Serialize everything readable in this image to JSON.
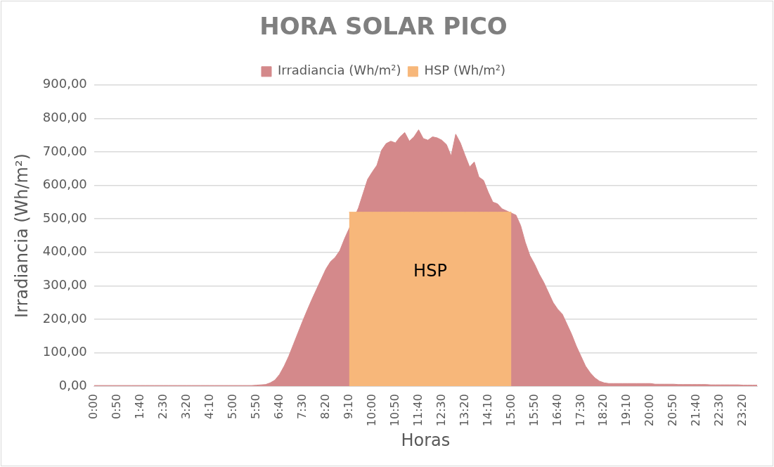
{
  "chart_data": {
    "type": "area",
    "title": "HORA SOLAR PICO",
    "xlabel": "Horas",
    "ylabel": "Irradiancia (Wh/m²)",
    "categories": [
      "0:00",
      null,
      null,
      null,
      null,
      "0:50",
      null,
      null,
      null,
      null,
      "1:40",
      null,
      null,
      null,
      null,
      "2:30",
      null,
      null,
      null,
      null,
      "3:20",
      null,
      null,
      null,
      null,
      "4:10",
      null,
      null,
      null,
      null,
      "5:00",
      null,
      null,
      null,
      null,
      "5:50",
      null,
      null,
      null,
      null,
      "6:40",
      null,
      null,
      null,
      null,
      "7:30",
      null,
      null,
      null,
      null,
      "8:20",
      null,
      null,
      null,
      null,
      "9:10",
      null,
      null,
      null,
      null,
      "10:00",
      null,
      null,
      null,
      null,
      "10:50",
      null,
      null,
      null,
      null,
      "11:40",
      null,
      null,
      null,
      null,
      "12:30",
      null,
      null,
      null,
      null,
      "13:20",
      null,
      null,
      null,
      null,
      "14:10",
      null,
      null,
      null,
      null,
      "15:00",
      null,
      null,
      null,
      null,
      "15:50",
      null,
      null,
      null,
      null,
      "16:40",
      null,
      null,
      null,
      null,
      "17:30",
      null,
      null,
      null,
      null,
      "18:20",
      null,
      null,
      null,
      null,
      "19:10",
      null,
      null,
      null,
      null,
      "20:00",
      null,
      null,
      null,
      null,
      "20:50",
      null,
      null,
      null,
      null,
      "21:40",
      null,
      null,
      null,
      null,
      "22:30",
      null,
      null,
      null,
      null,
      "23:20",
      null,
      null,
      null
    ],
    "series": [
      {
        "name": "Irradiancia (Wh/m²)",
        "color": "#d4898b",
        "values": [
          2,
          2,
          2,
          2,
          2,
          2,
          2,
          2,
          2,
          2,
          2,
          2,
          2,
          2,
          2,
          2,
          2,
          2,
          2,
          2,
          2,
          2,
          2,
          2,
          2,
          2,
          2,
          2,
          2,
          2,
          2,
          2,
          2,
          2,
          2,
          3,
          4,
          5,
          10,
          18,
          35,
          60,
          90,
          125,
          160,
          195,
          228,
          260,
          290,
          320,
          350,
          372,
          385,
          405,
          440,
          null,
          null,
          532,
          575,
          618,
          640,
          660,
          705,
          725,
          732,
          727,
          745,
          758,
          732,
          745,
          766,
          740,
          735,
          745,
          742,
          735,
          722,
          688,
          753,
          727,
          690,
          655,
          670,
          625,
          615,
          580,
          550,
          545,
          530,
          null,
          null,
          511,
          480,
          430,
          390,
          365,
          335,
          310,
          280,
          250,
          230,
          215,
          185,
          155,
          120,
          90,
          60,
          40,
          25,
          15,
          10,
          8,
          8,
          8,
          8,
          8,
          8,
          8,
          8,
          8,
          8,
          6,
          6,
          6,
          6,
          6,
          5,
          5,
          5,
          5,
          5,
          5,
          5,
          4,
          4,
          4,
          4,
          4,
          4,
          4,
          3,
          3,
          3,
          3
        ]
      },
      {
        "name": "HSP (Wh/m²)",
        "color": "#f7b77a",
        "values": [
          null,
          null,
          null,
          null,
          null,
          null,
          null,
          null,
          null,
          null,
          null,
          null,
          null,
          null,
          null,
          null,
          null,
          null,
          null,
          null,
          null,
          null,
          null,
          null,
          null,
          null,
          null,
          null,
          null,
          null,
          null,
          null,
          null,
          null,
          null,
          null,
          null,
          null,
          null,
          null,
          null,
          null,
          null,
          null,
          null,
          null,
          null,
          null,
          null,
          null,
          null,
          null,
          null,
          null,
          null,
          520,
          520,
          520,
          520,
          520,
          520,
          520,
          520,
          520,
          520,
          520,
          520,
          520,
          520,
          520,
          520,
          520,
          520,
          520,
          520,
          520,
          520,
          520,
          520,
          520,
          520,
          520,
          520,
          520,
          520,
          520,
          520,
          520,
          520,
          520,
          520,
          null,
          null,
          null,
          null,
          null,
          null,
          null,
          null,
          null,
          null,
          null,
          null,
          null,
          null,
          null,
          null,
          null,
          null,
          null,
          null,
          null,
          null,
          null,
          null,
          null,
          null,
          null,
          null,
          null,
          null,
          null,
          null,
          null,
          null,
          null,
          null,
          null,
          null,
          null,
          null,
          null,
          null,
          null,
          null,
          null,
          null,
          null,
          null,
          null,
          null,
          null,
          null,
          null
        ]
      }
    ],
    "ylim": [
      0,
      900
    ],
    "yticks": [
      {
        "value": 0,
        "label": "0,00"
      },
      {
        "value": 100,
        "label": "100,00"
      },
      {
        "value": 200,
        "label": "200,00"
      },
      {
        "value": 300,
        "label": "300,00"
      },
      {
        "value": 400,
        "label": "400,00"
      },
      {
        "value": 500,
        "label": "500,00"
      },
      {
        "value": 600,
        "label": "600,00"
      },
      {
        "value": 700,
        "label": "700,00"
      },
      {
        "value": 800,
        "label": "800,00"
      },
      {
        "value": 900,
        "label": "900,00"
      }
    ],
    "grid": "y",
    "legend": "top",
    "annotations": [
      "HSP"
    ]
  }
}
